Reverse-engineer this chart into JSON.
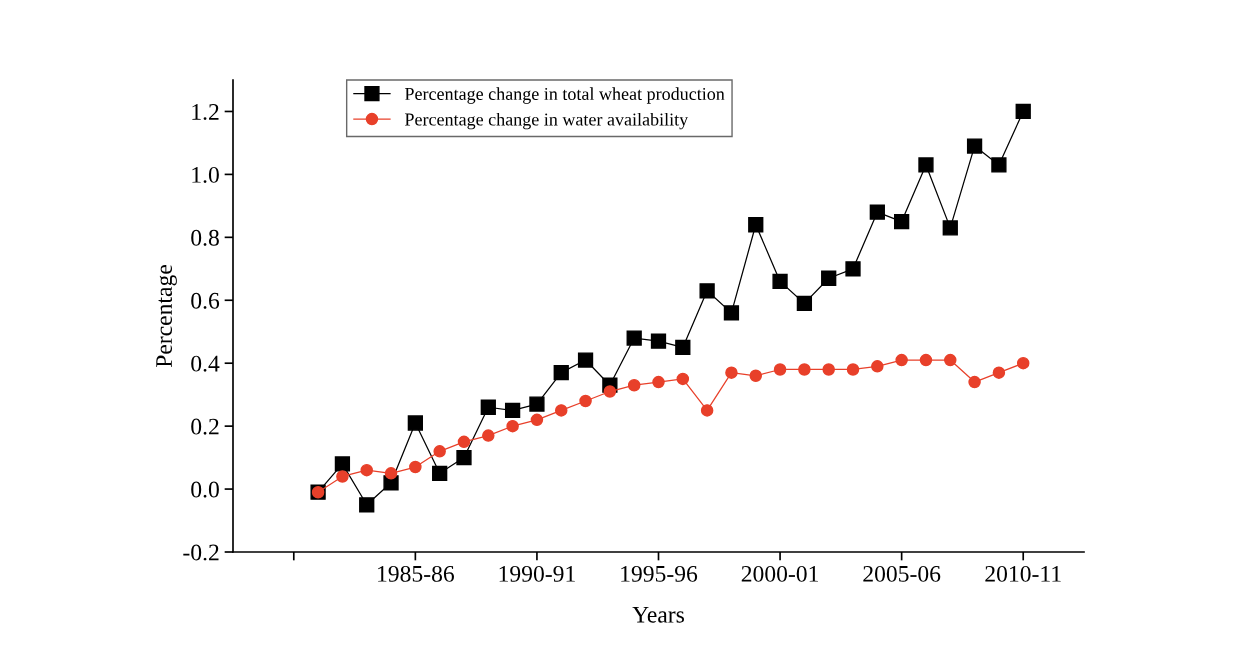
{
  "chart_data": {
    "type": "line",
    "xlabel": "Years",
    "ylabel": "Percentage",
    "categories": [
      null,
      null,
      null,
      null,
      null,
      "1985-86",
      null,
      null,
      null,
      null,
      "1990-91",
      null,
      null,
      null,
      null,
      "1995-96",
      null,
      null,
      null,
      null,
      "2000-01",
      null,
      null,
      null,
      null,
      "2005-06",
      null,
      null,
      null,
      null,
      "2010-11"
    ],
    "series": [
      {
        "name": "Percentage change in total wheat production",
        "color": "#000000",
        "marker": "square",
        "values": [
          null,
          -0.01,
          0.08,
          -0.05,
          0.02,
          0.21,
          0.05,
          0.1,
          0.26,
          0.25,
          0.27,
          0.37,
          0.41,
          0.33,
          0.48,
          0.47,
          0.45,
          0.63,
          0.56,
          0.84,
          0.66,
          0.59,
          0.67,
          0.7,
          0.88,
          0.85,
          1.03,
          0.83,
          1.09,
          1.03,
          1.2
        ]
      },
      {
        "name": "Percentage change in water availability",
        "color": "#e8402a",
        "marker": "circle",
        "values": [
          null,
          -0.01,
          0.04,
          0.06,
          0.05,
          0.07,
          0.12,
          0.15,
          0.17,
          0.2,
          0.22,
          0.25,
          0.28,
          0.31,
          0.33,
          0.34,
          0.35,
          0.25,
          0.37,
          0.36,
          0.38,
          0.38,
          0.38,
          0.38,
          0.39,
          0.41,
          0.41,
          0.41,
          0.34,
          0.37,
          0.4
        ]
      }
    ],
    "ylim": [
      -0.2,
      1.3
    ],
    "yticks": [
      {
        "value": -0.2,
        "label": "-0.2"
      },
      {
        "value": 0,
        "label": "0.0"
      },
      {
        "value": 0.2,
        "label": "0.2"
      },
      {
        "value": 0.4,
        "label": "0.4"
      },
      {
        "value": 0.6,
        "label": "0.6"
      },
      {
        "value": 0.8,
        "label": "0.8"
      },
      {
        "value": 1.0,
        "label": "1.0"
      },
      {
        "value": 1.2,
        "label": "1.2"
      }
    ],
    "grid": false,
    "legend": "top",
    "line_style": "solid"
  }
}
